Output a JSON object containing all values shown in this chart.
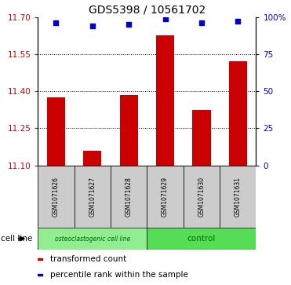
{
  "title": "GDS5398 / 10561702",
  "samples": [
    "GSM1071626",
    "GSM1071627",
    "GSM1071628",
    "GSM1071629",
    "GSM1071630",
    "GSM1071631"
  ],
  "bar_values": [
    11.375,
    11.16,
    11.385,
    11.625,
    11.325,
    11.52
  ],
  "percentile_values": [
    96,
    94,
    95,
    99,
    96,
    97
  ],
  "bar_bottom": 11.1,
  "ylim_left": [
    11.1,
    11.7
  ],
  "ylim_right": [
    0,
    100
  ],
  "yticks_left": [
    11.1,
    11.25,
    11.4,
    11.55,
    11.7
  ],
  "yticks_right": [
    0,
    25,
    50,
    75,
    100
  ],
  "bar_color": "#cc0000",
  "dot_color": "#0000cc",
  "groups": [
    {
      "label": "osteoclastogenic cell line",
      "samples": [
        0,
        1,
        2
      ],
      "color": "#90ee90"
    },
    {
      "label": "control",
      "samples": [
        3,
        4,
        5
      ],
      "color": "#55dd55"
    }
  ],
  "cell_line_label": "cell line",
  "legend": [
    {
      "label": "transformed count",
      "color": "#cc0000"
    },
    {
      "label": "percentile rank within the sample",
      "color": "#0000cc"
    }
  ],
  "ylabel_left_color": "#cc0000",
  "ylabel_right_color": "#0000cc",
  "bar_width": 0.5,
  "sample_box_color": "#cccccc",
  "title_fontsize": 10,
  "tick_fontsize": 7.5,
  "legend_fontsize": 7.5
}
